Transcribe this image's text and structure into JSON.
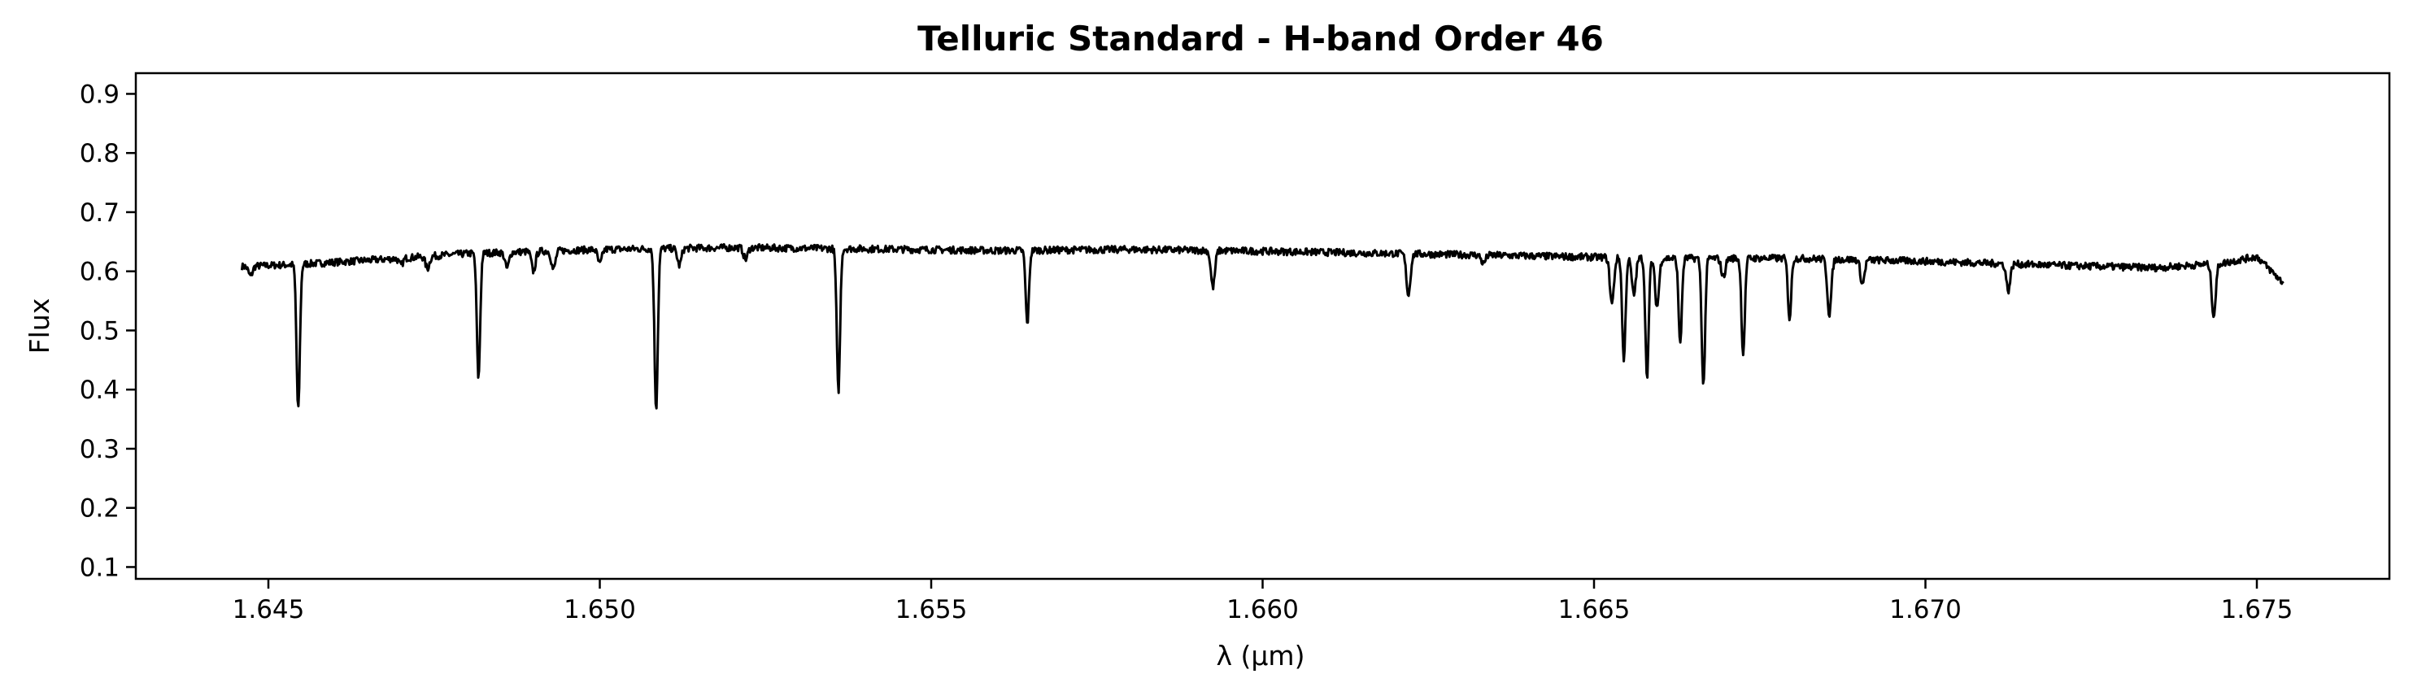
{
  "chart_data": {
    "type": "line",
    "title": "Telluric Standard - H-band Order 46",
    "xlabel": "λ (μm)",
    "ylabel": "Flux",
    "xlim": [
      1.643,
      1.677
    ],
    "ylim": [
      0.08,
      0.935
    ],
    "x_ticks": [
      1.645,
      1.65,
      1.655,
      1.66,
      1.665,
      1.67,
      1.675
    ],
    "x_tick_labels": [
      "1.645",
      "1.650",
      "1.655",
      "1.660",
      "1.665",
      "1.670",
      "1.675"
    ],
    "y_ticks": [
      0.1,
      0.2,
      0.3,
      0.4,
      0.5,
      0.6,
      0.7,
      0.8,
      0.9
    ],
    "y_tick_labels": [
      "0.1",
      "0.2",
      "0.3",
      "0.4",
      "0.5",
      "0.6",
      "0.7",
      "0.8",
      "0.9"
    ],
    "grid": false,
    "series": [
      {
        "color": "#000000",
        "x_range": [
          1.6446,
          1.6754
        ],
        "continuum": [
          [
            1.6446,
            0.608
          ],
          [
            1.6455,
            0.612
          ],
          [
            1.647,
            0.622
          ],
          [
            1.648,
            0.63
          ],
          [
            1.65,
            0.637
          ],
          [
            1.652,
            0.64
          ],
          [
            1.654,
            0.638
          ],
          [
            1.656,
            0.635
          ],
          [
            1.658,
            0.637
          ],
          [
            1.66,
            0.634
          ],
          [
            1.662,
            0.63
          ],
          [
            1.664,
            0.626
          ],
          [
            1.666,
            0.622
          ],
          [
            1.668,
            0.622
          ],
          [
            1.67,
            0.617
          ],
          [
            1.672,
            0.61
          ],
          [
            1.6735,
            0.606
          ],
          [
            1.6745,
            0.614
          ],
          [
            1.675,
            0.625
          ],
          [
            1.6754,
            0.58
          ]
        ],
        "absorption_lines": [
          {
            "x": 1.64473,
            "min": 0.592
          },
          {
            "x": 1.64545,
            "min": 0.365
          },
          {
            "x": 1.647,
            "min": 0.61
          },
          {
            "x": 1.6474,
            "min": 0.605
          },
          {
            "x": 1.6486,
            "min": 0.605
          },
          {
            "x": 1.64817,
            "min": 0.42
          },
          {
            "x": 1.649,
            "min": 0.6
          },
          {
            "x": 1.6493,
            "min": 0.603
          },
          {
            "x": 1.65,
            "min": 0.612
          },
          {
            "x": 1.65085,
            "min": 0.368
          },
          {
            "x": 1.6512,
            "min": 0.61
          },
          {
            "x": 1.6522,
            "min": 0.62
          },
          {
            "x": 1.6536,
            "min": 0.398
          },
          {
            "x": 1.65645,
            "min": 0.511
          },
          {
            "x": 1.65925,
            "min": 0.573
          },
          {
            "x": 1.6622,
            "min": 0.56
          },
          {
            "x": 1.66333,
            "min": 0.613
          },
          {
            "x": 1.66527,
            "min": 0.545
          },
          {
            "x": 1.66545,
            "min": 0.45
          },
          {
            "x": 1.6656,
            "min": 0.56
          },
          {
            "x": 1.6658,
            "min": 0.423
          },
          {
            "x": 1.66595,
            "min": 0.54
          },
          {
            "x": 1.6663,
            "min": 0.48
          },
          {
            "x": 1.66665,
            "min": 0.405
          },
          {
            "x": 1.66695,
            "min": 0.59
          },
          {
            "x": 1.66725,
            "min": 0.46
          },
          {
            "x": 1.66795,
            "min": 0.52
          },
          {
            "x": 1.66855,
            "min": 0.528
          },
          {
            "x": 1.66905,
            "min": 0.578
          },
          {
            "x": 1.67125,
            "min": 0.568
          },
          {
            "x": 1.67435,
            "min": 0.525
          }
        ]
      }
    ]
  }
}
